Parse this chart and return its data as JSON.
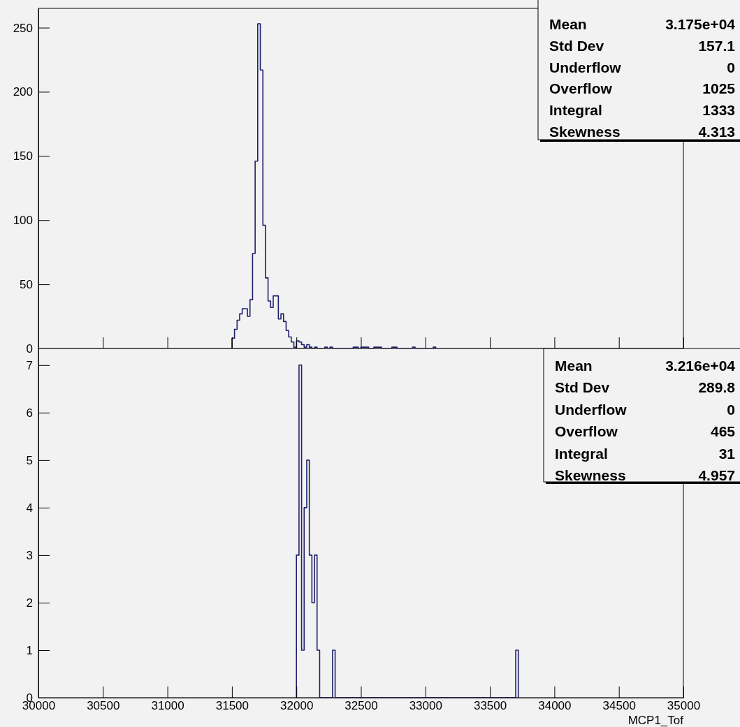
{
  "chart_data": [
    {
      "type": "histogram",
      "color": "#20206e",
      "xlim": [
        30000,
        35000
      ],
      "ylim": [
        0,
        265
      ],
      "yticks": [
        0,
        50,
        100,
        150,
        200,
        250
      ],
      "xticks": [
        30000,
        30500,
        31000,
        31500,
        32000,
        32500,
        33000,
        33500,
        34000,
        34500,
        35000
      ],
      "tick_labels": "y",
      "bins": [
        31500,
        31520,
        31540,
        31560,
        31580,
        31600,
        31620,
        31640,
        31660,
        31680,
        31700,
        31720,
        31740,
        31760,
        31780,
        31800,
        31820,
        31840,
        31860,
        31880,
        31900,
        31920,
        31940,
        31960,
        31980,
        32000,
        32020,
        32040,
        32060,
        32080,
        32100,
        32120,
        32140,
        32160,
        32180,
        32200,
        32220,
        32240,
        32260,
        32280,
        32300,
        32320,
        32340,
        32360,
        32380,
        32400,
        32420,
        32440,
        32460,
        32480,
        32500,
        32520,
        32540,
        32560,
        32580,
        32600,
        32620,
        32640,
        32660,
        32680,
        32700,
        32720,
        32740,
        32760,
        32780,
        32800,
        32820,
        32840,
        32860,
        32880,
        32900,
        32920,
        32940,
        32960,
        32980,
        33000,
        33020,
        33040,
        33060,
        33080
      ],
      "values": [
        8,
        15,
        22,
        27,
        31,
        31,
        25,
        38,
        74,
        146,
        253,
        217,
        96,
        55,
        37,
        32,
        41,
        41,
        23,
        27,
        21,
        14,
        9,
        5,
        1,
        6,
        5,
        3,
        1,
        3,
        1,
        0,
        1,
        0,
        0,
        0,
        1,
        0,
        1,
        0,
        0,
        0,
        0,
        0,
        0,
        0,
        0,
        1,
        1,
        0,
        1,
        1,
        1,
        0,
        0,
        1,
        1,
        1,
        0,
        0,
        0,
        0,
        1,
        1,
        0,
        0,
        0,
        0,
        0,
        0,
        1,
        0,
        0,
        0,
        0,
        0,
        0,
        0,
        1
      ],
      "annotations": [
        "Mean",
        "3.175e+04",
        "Std Dev",
        "157.1",
        "Underflow",
        "0",
        "Overflow",
        "1025",
        "Integral",
        "1333",
        "Skewness",
        "4.313"
      ]
    },
    {
      "type": "histogram",
      "color": "#20206e",
      "xlim": [
        30000,
        35000
      ],
      "ylim": [
        0,
        7.35
      ],
      "yticks": [
        0,
        1,
        2,
        3,
        4,
        5,
        6,
        7
      ],
      "xticks": [
        30000,
        30500,
        31000,
        31500,
        32000,
        32500,
        33000,
        33500,
        34000,
        34500,
        35000
      ],
      "xlabel": "MCP1_Tof",
      "bins": [
        32000,
        32020,
        32040,
        32060,
        32080,
        32100,
        32120,
        32140,
        32160,
        32180,
        32200,
        32220,
        32240,
        32260,
        32280,
        32300,
        32320,
        32340,
        32360,
        32380,
        32400,
        32420,
        32440,
        32460,
        32480,
        32500,
        32520,
        32540,
        32560,
        32580,
        32600,
        32620,
        32640,
        32660,
        32680,
        32700,
        32720,
        32740,
        32760,
        32780,
        32800,
        32820,
        32840,
        32860,
        32880,
        32900,
        32920,
        32940,
        32960,
        32980,
        33000,
        33020,
        33040,
        33060,
        33080,
        33100,
        33120,
        33140,
        33160,
        33180,
        33200,
        33220,
        33240,
        33260,
        33280,
        33300,
        33320,
        33340,
        33360,
        33380,
        33400,
        33420,
        33440,
        33460,
        33480,
        33500,
        33520,
        33540,
        33560,
        33580,
        33600,
        33620,
        33640,
        33660,
        33680,
        33700,
        33720
      ],
      "values": [
        3,
        7,
        1,
        4,
        5,
        3,
        2,
        3,
        1,
        0,
        0,
        0,
        0,
        0,
        1,
        0,
        0,
        0,
        0,
        0,
        0,
        0,
        0,
        0,
        0,
        0,
        0,
        0,
        0,
        0,
        0,
        0,
        0,
        0,
        0,
        0,
        0,
        0,
        0,
        0,
        0,
        0,
        0,
        0,
        0,
        0,
        0,
        0,
        0,
        0,
        0,
        0,
        0,
        0,
        0,
        0,
        0,
        0,
        0,
        0,
        0,
        0,
        0,
        0,
        0,
        0,
        0,
        0,
        0,
        0,
        0,
        0,
        0,
        0,
        0,
        0,
        0,
        0,
        0,
        0,
        0,
        0,
        0,
        0,
        0,
        1
      ],
      "annotations": [
        "Mean",
        "3.216e+04",
        "Std Dev",
        "289.8",
        "Underflow",
        "0",
        "Overflow",
        "465",
        "Integral",
        "31",
        "Skewness",
        "4.957"
      ]
    }
  ]
}
